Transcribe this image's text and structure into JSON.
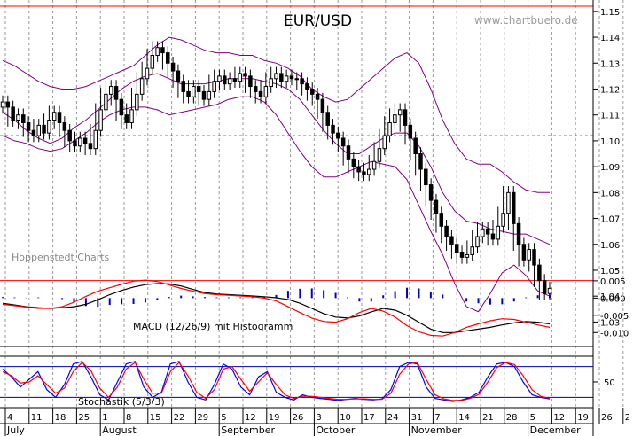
{
  "title": "EUR/USD",
  "website": "www.chartbuero.de",
  "watermark": "Hoppenstedt Charts",
  "colors": {
    "candle": "#000000",
    "bollinger": "#800080",
    "support_resistance": "#ff0000",
    "macd_line": "#000000",
    "macd_signal": "#ff0000",
    "macd_histogram": "#0000cc",
    "stoch_k": "#0000ff",
    "stoch_d": "#ff0000",
    "stoch_levels": "#0000aa",
    "grid": "#999999"
  },
  "chart_data": [
    {
      "type": "candlestick",
      "title": "EUR/USD",
      "x_unit": "trading day (July to mid-December)",
      "y_ticks": [
        "1.03",
        "1.04",
        "1.05",
        "1.06",
        "1.07",
        "1.08",
        "1.09",
        "1.10",
        "1.11",
        "1.12",
        "1.13",
        "1.14",
        "1.15"
      ],
      "ylim": [
        1.025,
        1.152
      ],
      "horizontal_lines": [
        {
          "value": 1.152,
          "style": "solid"
        },
        {
          "value": 1.102,
          "style": "dashed"
        },
        {
          "value": 1.046,
          "style": "solid"
        }
      ],
      "closes": [
        1.115,
        1.113,
        1.108,
        1.11,
        1.107,
        1.104,
        1.102,
        1.106,
        1.103,
        1.108,
        1.111,
        1.107,
        1.104,
        1.1,
        1.098,
        1.101,
        1.099,
        1.097,
        1.104,
        1.112,
        1.118,
        1.121,
        1.116,
        1.11,
        1.107,
        1.112,
        1.118,
        1.124,
        1.128,
        1.133,
        1.136,
        1.134,
        1.13,
        1.127,
        1.123,
        1.119,
        1.117,
        1.121,
        1.119,
        1.116,
        1.119,
        1.123,
        1.125,
        1.122,
        1.124,
        1.123,
        1.126,
        1.125,
        1.121,
        1.119,
        1.117,
        1.121,
        1.124,
        1.126,
        1.123,
        1.125,
        1.124,
        1.124,
        1.122,
        1.12,
        1.118,
        1.116,
        1.111,
        1.106,
        1.103,
        1.101,
        1.098,
        1.093,
        1.09,
        1.088,
        1.087,
        1.089,
        1.092,
        1.097,
        1.102,
        1.107,
        1.11,
        1.112,
        1.106,
        1.101,
        1.095,
        1.089,
        1.083,
        1.077,
        1.072,
        1.067,
        1.063,
        1.06,
        1.057,
        1.055,
        1.056,
        1.059,
        1.063,
        1.066,
        1.064,
        1.062,
        1.067,
        1.072,
        1.08,
        1.068,
        1.06,
        1.054,
        1.058,
        1.052,
        1.046,
        1.041,
        1.043
      ],
      "bollinger": {
        "upper": [
          1.131,
          1.129,
          1.126,
          1.123,
          1.121,
          1.12,
          1.12,
          1.121,
          1.123,
          1.125,
          1.127,
          1.129,
          1.133,
          1.137,
          1.14,
          1.139,
          1.137,
          1.135,
          1.134,
          1.134,
          1.133,
          1.133,
          1.131,
          1.13,
          1.128,
          1.125,
          1.12,
          1.117,
          1.115,
          1.116,
          1.12,
          1.124,
          1.128,
          1.132,
          1.134,
          1.13,
          1.12,
          1.108,
          1.099,
          1.093,
          1.091,
          1.091,
          1.088,
          1.084,
          1.081,
          1.08,
          1.08
        ],
        "middle": [
          1.111,
          1.108,
          1.104,
          1.101,
          1.099,
          1.101,
          1.105,
          1.108,
          1.112,
          1.116,
          1.12,
          1.123,
          1.125,
          1.126,
          1.124,
          1.122,
          1.122,
          1.122,
          1.123,
          1.124,
          1.124,
          1.124,
          1.123,
          1.122,
          1.12,
          1.116,
          1.11,
          1.104,
          1.099,
          1.095,
          1.095,
          1.098,
          1.101,
          1.103,
          1.103,
          1.098,
          1.09,
          1.08,
          1.073,
          1.069,
          1.068,
          1.066,
          1.065,
          1.064,
          1.064,
          1.062,
          1.06
        ],
        "lower": [
          1.102,
          1.1,
          1.099,
          1.097,
          1.096,
          1.097,
          1.1,
          1.103,
          1.107,
          1.11,
          1.112,
          1.113,
          1.113,
          1.112,
          1.11,
          1.111,
          1.112,
          1.113,
          1.114,
          1.116,
          1.117,
          1.117,
          1.115,
          1.11,
          1.103,
          1.096,
          1.09,
          1.086,
          1.086,
          1.088,
          1.09,
          1.092,
          1.091,
          1.09,
          1.085,
          1.075,
          1.065,
          1.056,
          1.045,
          1.036,
          1.034,
          1.041,
          1.049,
          1.052,
          1.048,
          1.042,
          1.04
        ]
      },
      "x_day_ticks": [
        "4",
        "11",
        "18",
        "25",
        "1",
        "8",
        "15",
        "22",
        "29",
        "5",
        "12",
        "19",
        "26",
        "3",
        "10",
        "17",
        "24",
        "31",
        "7",
        "14",
        "21",
        "28",
        "5",
        "12",
        "19",
        "26",
        "2"
      ],
      "x_month_labels": [
        "July",
        "August",
        "September",
        "October",
        "November",
        "December"
      ]
    },
    {
      "type": "line",
      "label": "MACD (12/26/9) mit Histogramm",
      "y_ticks": [
        "0.005",
        "0.000",
        "-0.005",
        "-0.010"
      ],
      "ylim": [
        -0.0125,
        0.006
      ],
      "series": [
        {
          "role": "macd",
          "values": [
            -0.0015,
            -0.002,
            -0.0025,
            -0.0028,
            -0.003,
            -0.0028,
            -0.0025,
            -0.0018,
            -0.0005,
            0.001,
            0.0022,
            0.0032,
            0.0039,
            0.0042,
            0.0041,
            0.0035,
            0.0025,
            0.0016,
            0.0012,
            0.001,
            0.0008,
            0.0006,
            0.0004,
            0.0001,
            -0.0004,
            -0.0015,
            -0.003,
            -0.0045,
            -0.0055,
            -0.0058,
            -0.0052,
            -0.004,
            -0.003,
            -0.0035,
            -0.005,
            -0.007,
            -0.009,
            -0.01,
            -0.01,
            -0.0095,
            -0.009,
            -0.0085,
            -0.0078,
            -0.0072,
            -0.0068,
            -0.007,
            -0.0075
          ]
        },
        {
          "role": "signal",
          "values": [
            -0.0018,
            -0.0022,
            -0.0026,
            -0.003,
            -0.003,
            -0.0025,
            -0.0012,
            0.0005,
            0.002,
            0.003,
            0.004,
            0.0049,
            0.0052,
            0.0048,
            0.0038,
            0.0028,
            0.002,
            0.0013,
            0.001,
            0.0008,
            0.0006,
            0.0004,
            0.0,
            -0.0008,
            -0.0025,
            -0.0042,
            -0.0058,
            -0.0068,
            -0.007,
            -0.006,
            -0.0042,
            -0.003,
            -0.0038,
            -0.0055,
            -0.008,
            -0.0098,
            -0.0108,
            -0.011,
            -0.01,
            -0.0085,
            -0.0075,
            -0.0066,
            -0.006,
            -0.0062,
            -0.007,
            -0.0078,
            -0.0085
          ]
        }
      ],
      "histogram": [
        0.0003,
        0.0002,
        0.0001,
        0.0002,
        0.0,
        -0.0003,
        -0.0013,
        -0.0023,
        -0.0025,
        -0.002,
        -0.0018,
        -0.0017,
        -0.0013,
        -0.0006,
        0.0003,
        0.0007,
        0.0005,
        0.0003,
        0.0002,
        0.0002,
        0.0002,
        0.0002,
        0.0004,
        0.0009,
        0.0021,
        0.0027,
        0.0028,
        0.0023,
        0.0015,
        0.0002,
        -0.001,
        -0.001,
        0.0008,
        0.002,
        0.003,
        0.0028,
        0.0018,
        0.001,
        0.0,
        -0.001,
        -0.0015,
        -0.0019,
        -0.0018,
        -0.001,
        0.0002,
        0.0008,
        0.001
      ]
    },
    {
      "type": "line",
      "label": "Stochastik (5/3/3)",
      "y_ticks": [
        "50"
      ],
      "ylim": [
        0,
        100
      ],
      "reference_lines": [
        80,
        20
      ],
      "series": [
        {
          "role": "k",
          "values": [
            75,
            60,
            40,
            55,
            70,
            35,
            20,
            45,
            85,
            90,
            60,
            25,
            15,
            50,
            85,
            90,
            40,
            20,
            30,
            85,
            90,
            50,
            20,
            15,
            45,
            85,
            75,
            40,
            25,
            60,
            70,
            30,
            20,
            15,
            25,
            20,
            18,
            16,
            14,
            16,
            18,
            16,
            15,
            17,
            35,
            80,
            88,
            85,
            40,
            18,
            15,
            12,
            15,
            20,
            30,
            60,
            85,
            88,
            80,
            50,
            25,
            20,
            17
          ]
        },
        {
          "role": "d",
          "values": [
            70,
            62,
            48,
            50,
            62,
            45,
            28,
            38,
            70,
            88,
            72,
            38,
            20,
            40,
            75,
            88,
            55,
            28,
            28,
            70,
            88,
            62,
            30,
            18,
            35,
            75,
            80,
            55,
            32,
            50,
            68,
            45,
            25,
            18,
            22,
            22,
            20,
            18,
            16,
            16,
            17,
            17,
            16,
            16,
            28,
            65,
            85,
            88,
            55,
            25,
            17,
            14,
            14,
            18,
            26,
            50,
            78,
            88,
            84,
            62,
            35,
            22,
            18
          ]
        }
      ]
    }
  ]
}
